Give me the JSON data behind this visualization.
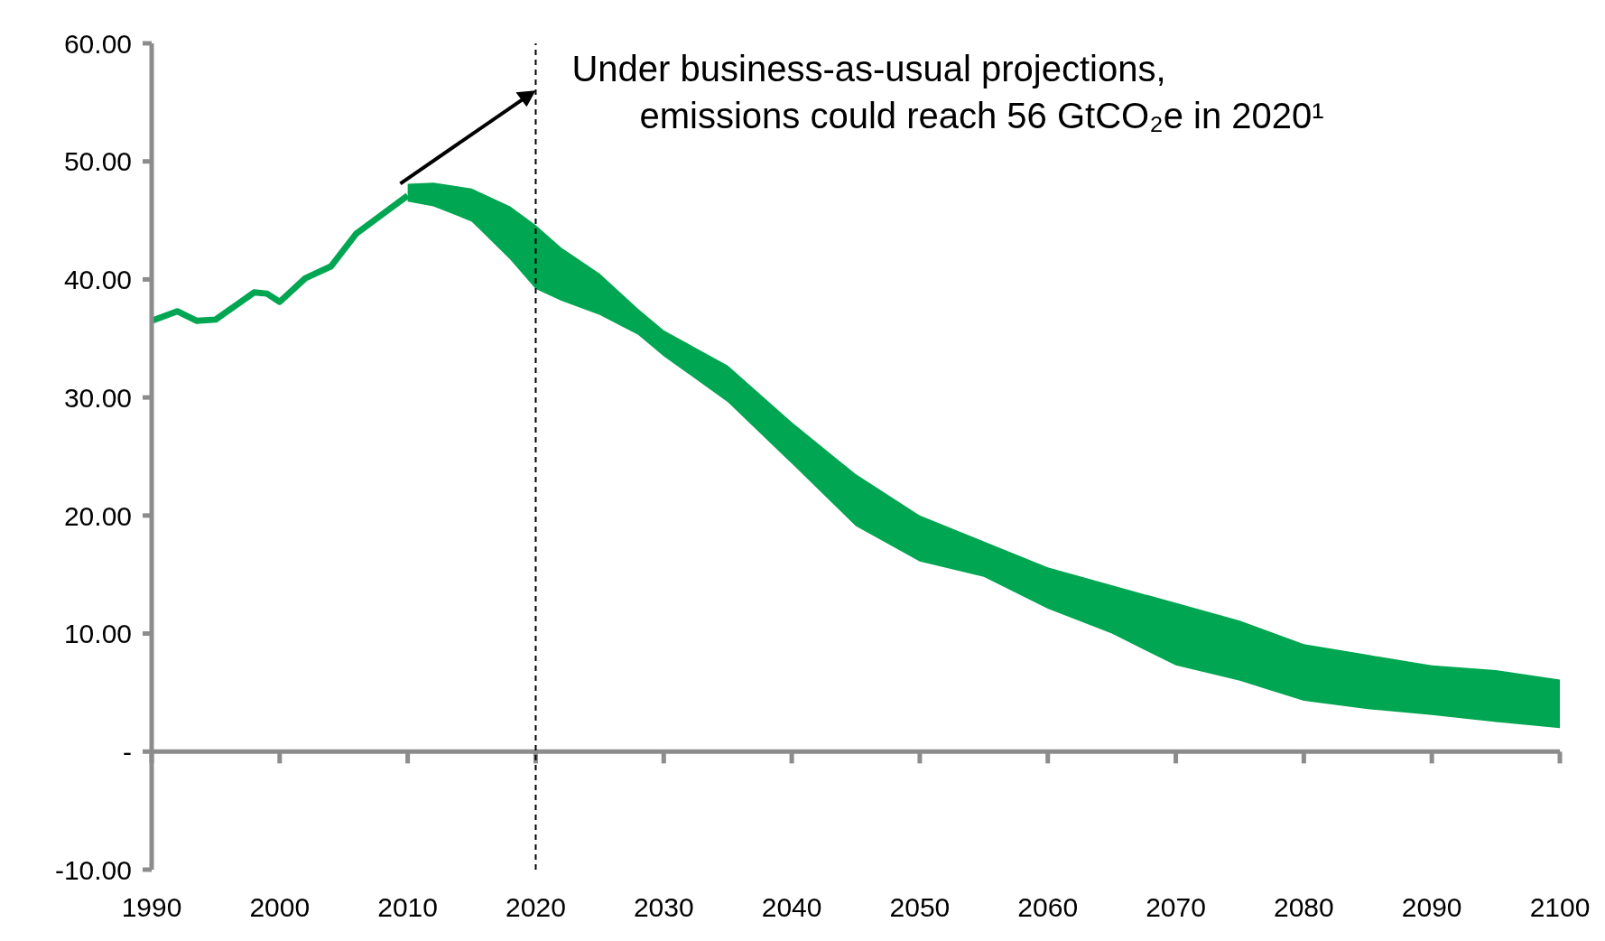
{
  "chart_data": {
    "type": "line",
    "annotations": [
      {
        "text": "Under business-as-usual projections,\nemissions could reach 56 GtCO₂e in 2020¹",
        "x": 2020,
        "y": 56
      }
    ],
    "series": [
      {
        "type": "line",
        "color": "#00a651",
        "x": [
          1990,
          1992,
          1993.5,
          1995,
          1998,
          1999,
          2000,
          2002,
          2004,
          2006,
          2008,
          2010
        ],
        "values": [
          36.5,
          37.3,
          36.5,
          36.6,
          38.9,
          38.8,
          38.1,
          40.1,
          41.1,
          43.9,
          45.5,
          47.1
        ]
      },
      {
        "type": "area",
        "color": "#00a651",
        "x": [
          2010,
          2012,
          2015,
          2018,
          2020,
          2022,
          2025,
          2028,
          2030,
          2035,
          2040,
          2045,
          2050,
          2055,
          2060,
          2065,
          2070,
          2075,
          2080,
          2085,
          2090,
          2095,
          2100
        ],
        "values": [
          null,
          null,
          null,
          null,
          null,
          null,
          null,
          null,
          null,
          null,
          null,
          null,
          null,
          null,
          null,
          null,
          null,
          null,
          null,
          null,
          null,
          null,
          null
        ],
        "lower": [
          46.6,
          46.2,
          44.9,
          41.7,
          39.2,
          38.2,
          37.0,
          35.3,
          33.5,
          29.6,
          24.4,
          19.1,
          16.1,
          14.8,
          12.1,
          10.0,
          7.3,
          6.0,
          4.3,
          3.6,
          3.1,
          2.5,
          2.0
        ],
        "upper": [
          48.1,
          48.2,
          47.7,
          46.2,
          44.6,
          42.7,
          40.5,
          37.5,
          35.7,
          32.7,
          27.9,
          23.5,
          20.0,
          17.8,
          15.6,
          14.1,
          12.6,
          11.1,
          9.1,
          8.2,
          7.3,
          6.9,
          6.1
        ]
      }
    ],
    "xlim": [
      1990,
      2100
    ],
    "xticks": [
      1990,
      2000,
      2010,
      2020,
      2030,
      2040,
      2050,
      2060,
      2070,
      2080,
      2090,
      2100
    ],
    "ylim": [
      -10,
      60
    ],
    "yticks": [
      {
        "value": -10,
        "label": "-10.00"
      },
      {
        "value": 0,
        "label": "-"
      },
      {
        "value": 10,
        "label": "10.00"
      },
      {
        "value": 20,
        "label": "20.00"
      },
      {
        "value": 30,
        "label": "30.00"
      },
      {
        "value": 40,
        "label": "40.00"
      },
      {
        "value": 50,
        "label": "50.00"
      },
      {
        "value": 60,
        "label": "60.00"
      }
    ],
    "ref_lines": [
      {
        "axis": "x",
        "value": 2020,
        "color": "#000000",
        "line_style": "dashed"
      }
    ],
    "grid": false,
    "marker": "none"
  }
}
